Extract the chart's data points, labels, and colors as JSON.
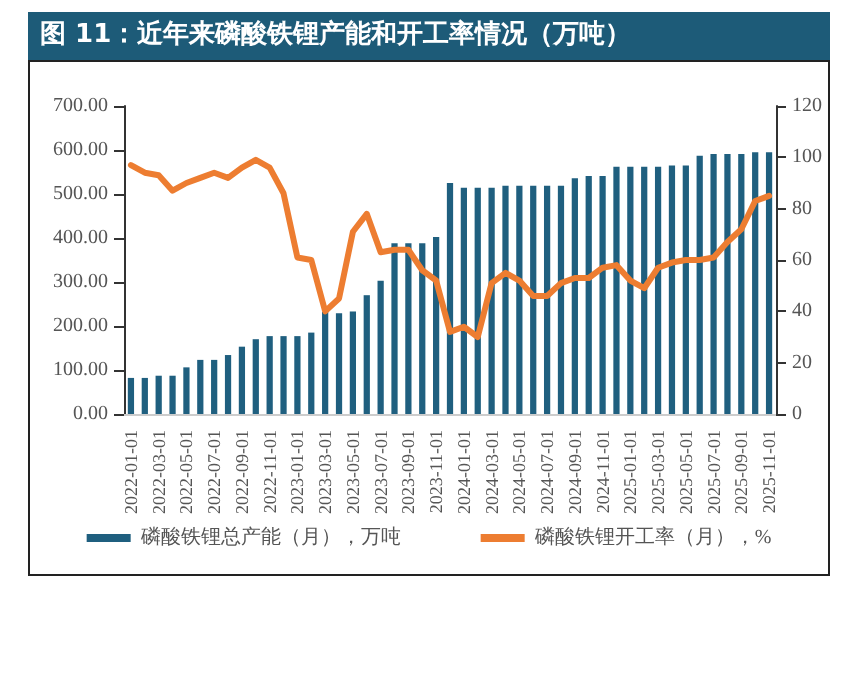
{
  "chart_data": {
    "type": "bar",
    "title": "图 11：近年来磷酸铁锂产能和开工率情况（万吨）",
    "categories": [
      "2022-01-01",
      null,
      "2022-03-01",
      null,
      "2022-05-01",
      null,
      "2022-07-01",
      null,
      "2022-09-01",
      null,
      "2022-11-01",
      null,
      "2023-01-01",
      null,
      "2023-03-01",
      null,
      "2023-05-01",
      null,
      "2023-07-01",
      null,
      "2023-09-01",
      null,
      "2023-11-01",
      null,
      "2024-01-01",
      null,
      "2024-03-01",
      null,
      "2024-05-01",
      null,
      "2024-07-01",
      null,
      "2024-09-01",
      null,
      "2024-11-01",
      null,
      "2025-01-01",
      null,
      "2025-03-01",
      null,
      "2025-05-01",
      null,
      "2025-07-01",
      null,
      "2025-09-01",
      null,
      "2025-11-01"
    ],
    "series": [
      {
        "name": "磷酸铁锂总产能（月），万吨",
        "color": "#1f5f7f",
        "values": [
          82,
          82,
          87,
          87,
          106,
          123,
          123,
          134,
          153,
          170,
          177,
          177,
          177,
          185,
          232,
          229,
          233,
          270,
          303,
          388,
          388,
          388,
          402,
          525,
          514,
          514,
          514,
          519,
          519,
          519,
          519,
          519,
          536,
          541,
          541,
          562,
          562,
          562,
          562,
          565,
          565,
          587,
          591,
          591,
          591,
          595,
          595
        ]
      },
      {
        "name": "磷酸铁锂开工率（月），%",
        "type": "line",
        "axis": "y2",
        "color": "#ed7d31",
        "values": [
          97,
          94,
          93,
          87,
          90,
          92,
          94,
          92,
          96,
          99,
          96,
          86,
          61,
          60,
          40,
          45,
          71,
          78,
          63,
          64,
          64,
          56,
          52,
          32,
          34,
          30,
          51,
          55,
          52,
          46,
          46,
          51,
          53,
          53,
          57,
          58,
          52,
          49,
          57,
          59,
          60,
          60,
          61,
          67,
          72,
          83,
          85
        ]
      }
    ],
    "ylim": [
      0,
      700
    ],
    "yticks": [
      {
        "value": 0,
        "label": "0.00"
      },
      {
        "value": 100,
        "label": "100.00"
      },
      {
        "value": 200,
        "label": "200.00"
      },
      {
        "value": 300,
        "label": "300.00"
      },
      {
        "value": 400,
        "label": "400.00"
      },
      {
        "value": 500,
        "label": "500.00"
      },
      {
        "value": 600,
        "label": "600.00"
      },
      {
        "value": 700,
        "label": "700.00"
      }
    ],
    "y2lim": [
      0,
      120
    ],
    "y2ticks": [
      0,
      20,
      40,
      60,
      80,
      100,
      120
    ],
    "grid": false,
    "legend": "bottom",
    "marker": "none"
  }
}
